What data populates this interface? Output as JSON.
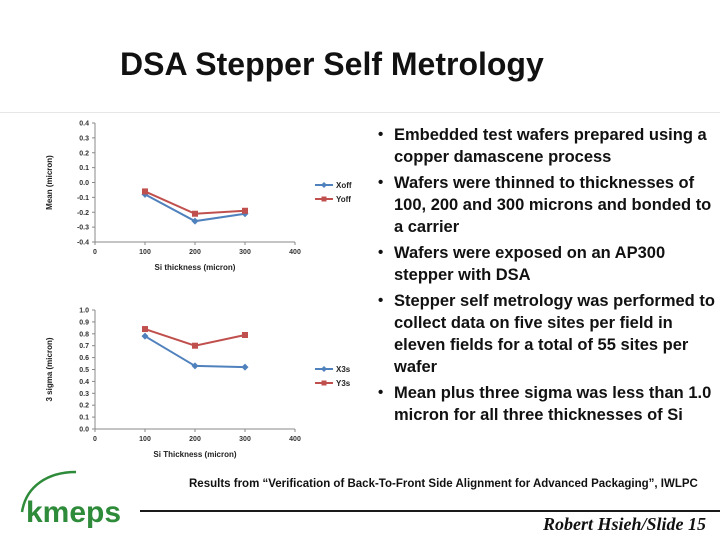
{
  "slide": {
    "title": "DSA Stepper Self Metrology",
    "bullets": [
      "Embedded test wafers prepared using a copper damascene process",
      "Wafers were thinned to thicknesses of 100, 200 and 300 microns and bonded to a carrier",
      "Wafers were exposed on an AP300 stepper with DSA",
      "Stepper self metrology was performed to  collect data on five sites per field in eleven fields  for a total of 55 sites per wafer",
      "Mean plus three sigma was less than 1.0 micron for all three thicknesses of Si"
    ],
    "citation": "Results from “Verification of Back-To-Front Side Alignment for Advanced Packaging”, IWLPC",
    "slide_number": "Robert Hsieh/Slide 15",
    "logo_text": "kmeps"
  },
  "colors": {
    "series_1": "#4f81bd",
    "series_2": "#c0504d",
    "logo_green": "#2e8b3a",
    "text": "#111111"
  },
  "chart_data": [
    {
      "type": "line",
      "xlabel": "Si thickness (micron)",
      "ylabel": "Mean (micron)",
      "xlim": [
        0,
        400
      ],
      "ylim": [
        -0.4,
        0.4
      ],
      "xticks": [
        0,
        100,
        200,
        300,
        400
      ],
      "yticks": [
        0.4,
        0.3,
        0.2,
        0.1,
        0.0,
        -0.1,
        -0.2,
        -0.3,
        -0.4
      ],
      "xtick_labels": [
        "0",
        "100",
        "200",
        "300",
        "400"
      ],
      "ytick_labels": [
        "0.4",
        "0.3",
        "0.2",
        "0.1",
        "0.0",
        "-0.1",
        "-0.2",
        "-0.3",
        "-0.4"
      ],
      "x": [
        100,
        200,
        300
      ],
      "series": [
        {
          "name": "Xoff",
          "marker": "diamond",
          "values": [
            -0.08,
            -0.26,
            -0.21
          ]
        },
        {
          "name": "Yoff",
          "marker": "square",
          "values": [
            -0.06,
            -0.21,
            -0.19
          ]
        }
      ],
      "legend": "right",
      "grid": false
    },
    {
      "type": "line",
      "xlabel": "Si Thickness (micron)",
      "ylabel": "3 sigma (micron)",
      "xlim": [
        0,
        400
      ],
      "ylim": [
        0.0,
        1.0
      ],
      "xticks": [
        0,
        100,
        200,
        300,
        400
      ],
      "yticks": [
        1.0,
        0.9,
        0.8,
        0.7,
        0.6,
        0.5,
        0.4,
        0.3,
        0.2,
        0.1,
        0.0
      ],
      "xtick_labels": [
        "0",
        "100",
        "200",
        "300",
        "400"
      ],
      "ytick_labels": [
        "1.0",
        "0.9",
        "0.8",
        "0.7",
        "0.6",
        "0.5",
        "0.4",
        "0.3",
        "0.2",
        "0.1",
        "0.0"
      ],
      "x": [
        100,
        200,
        300
      ],
      "series": [
        {
          "name": "X3s",
          "marker": "diamond",
          "values": [
            0.78,
            0.53,
            0.52
          ]
        },
        {
          "name": "Y3s",
          "marker": "square",
          "values": [
            0.84,
            0.7,
            0.79
          ]
        }
      ],
      "legend": "right",
      "grid": false
    }
  ]
}
